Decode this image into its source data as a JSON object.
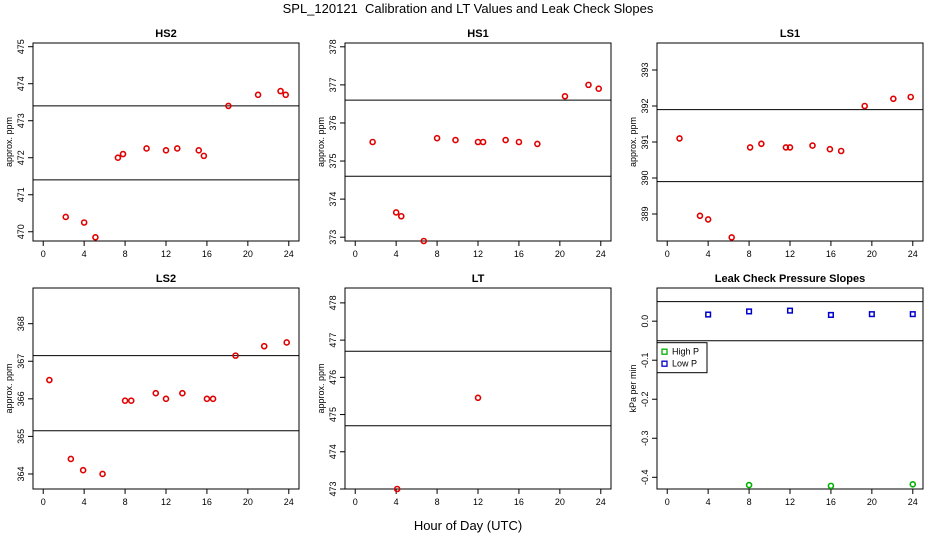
{
  "title": "SPL_120121  Calibration and LT Values and Leak Check Slopes",
  "x_axis_label": "Hour of Day (UTC)",
  "colors": {
    "point": "#e00000",
    "high_p": "#00b000",
    "low_p": "#0000cc",
    "axis": "#000000"
  },
  "chart_data": [
    {
      "type": "scatter",
      "title": "HS2",
      "ylabel": "approx. ppm",
      "xlim": [
        -1,
        25
      ],
      "ylim": [
        469.75,
        475.1
      ],
      "xticks": [
        0,
        4,
        8,
        12,
        16,
        20,
        24
      ],
      "yticks": [
        470,
        471,
        472,
        473,
        474,
        475
      ],
      "hlines": [
        471.4,
        473.4
      ],
      "series": [
        {
          "marker": "circle",
          "color": "#e00000",
          "x": [
            2.2,
            4.0,
            5.1,
            7.3,
            7.8,
            10.1,
            12.0,
            13.1,
            15.2,
            15.7,
            18.1,
            21.0,
            23.2,
            23.7
          ],
          "y": [
            470.4,
            470.25,
            469.85,
            472.0,
            472.1,
            472.25,
            472.2,
            472.25,
            472.2,
            472.05,
            473.4,
            473.7,
            473.8,
            473.7
          ]
        }
      ]
    },
    {
      "type": "scatter",
      "title": "HS1",
      "ylabel": "approx. ppm",
      "xlim": [
        -1,
        25
      ],
      "ylim": [
        372.9,
        378.1
      ],
      "xticks": [
        0,
        4,
        8,
        12,
        16,
        20,
        24
      ],
      "yticks": [
        373,
        374,
        375,
        376,
        377,
        378
      ],
      "hlines": [
        374.6,
        376.6
      ],
      "series": [
        {
          "marker": "circle",
          "color": "#e00000",
          "x": [
            1.7,
            4.0,
            4.5,
            6.7,
            8.0,
            9.8,
            12.0,
            12.5,
            14.7,
            16.0,
            17.8,
            20.5,
            22.8,
            23.8
          ],
          "y": [
            375.5,
            373.65,
            373.55,
            372.9,
            375.6,
            375.55,
            375.5,
            375.5,
            375.55,
            375.5,
            375.45,
            376.7,
            377.0,
            376.9
          ]
        }
      ]
    },
    {
      "type": "scatter",
      "title": "LS1",
      "ylabel": "approx. ppm",
      "xlim": [
        -1,
        25
      ],
      "ylim": [
        388.25,
        393.75
      ],
      "xticks": [
        0,
        4,
        8,
        12,
        16,
        20,
        24
      ],
      "yticks": [
        389,
        390,
        391,
        392,
        393
      ],
      "hlines": [
        389.9,
        391.9
      ],
      "series": [
        {
          "marker": "circle",
          "color": "#e00000",
          "x": [
            1.2,
            3.2,
            4.0,
            6.3,
            8.1,
            9.2,
            11.6,
            12.0,
            14.2,
            15.9,
            17.0,
            19.3,
            22.1,
            23.8
          ],
          "y": [
            391.1,
            388.95,
            388.85,
            388.35,
            390.85,
            390.95,
            390.85,
            390.85,
            390.9,
            390.8,
            390.75,
            392.0,
            392.2,
            392.25
          ]
        }
      ]
    },
    {
      "type": "scatter",
      "title": "LS2",
      "ylabel": "approx. ppm",
      "xlim": [
        -1,
        25
      ],
      "ylim": [
        363.6,
        368.95
      ],
      "xticks": [
        0,
        4,
        8,
        12,
        16,
        20,
        24
      ],
      "yticks": [
        364,
        365,
        366,
        367,
        368
      ],
      "hlines": [
        365.15,
        367.15
      ],
      "series": [
        {
          "marker": "circle",
          "color": "#e00000",
          "x": [
            0.6,
            2.7,
            3.9,
            5.8,
            8.0,
            8.6,
            11.0,
            12.0,
            13.6,
            16.0,
            16.6,
            18.8,
            21.6,
            23.8
          ],
          "y": [
            366.5,
            364.4,
            364.1,
            364.0,
            365.95,
            365.95,
            366.15,
            366.0,
            366.15,
            366.0,
            366.0,
            367.15,
            367.4,
            367.5
          ]
        }
      ]
    },
    {
      "type": "scatter",
      "title": "LT",
      "ylabel": "approx. ppm",
      "xlim": [
        -1,
        25
      ],
      "ylim": [
        473.0,
        478.4
      ],
      "xticks": [
        0,
        4,
        8,
        12,
        16,
        20,
        24
      ],
      "yticks": [
        473,
        474,
        475,
        476,
        477,
        478
      ],
      "hlines": [
        474.7,
        476.7
      ],
      "series": [
        {
          "marker": "circle",
          "color": "#e00000",
          "x": [
            4.1,
            12.0
          ],
          "y": [
            473.0,
            475.45
          ]
        }
      ]
    },
    {
      "type": "scatter",
      "title": "Leak Check Pressure Slopes",
      "ylabel": "kPa per min",
      "xlim": [
        -1,
        25
      ],
      "ylim": [
        -0.43,
        0.085
      ],
      "xticks": [
        0,
        4,
        8,
        12,
        16,
        20,
        24
      ],
      "yticks": [
        0.0,
        -0.1,
        -0.2,
        -0.3,
        -0.4
      ],
      "ytick_labels": [
        "0.0",
        "-0.1",
        "-0.2",
        "-0.3",
        "-0.4"
      ],
      "hlines": [
        0.05,
        -0.05
      ],
      "legend": {
        "position": "middle-left",
        "entries": [
          "High P",
          "Low P"
        ]
      },
      "series": [
        {
          "name": "High P",
          "marker": "circle",
          "color": "#00b000",
          "x": [
            8.0,
            16.0,
            24.0
          ],
          "y": [
            -0.42,
            -0.422,
            -0.418
          ]
        },
        {
          "name": "Low P",
          "marker": "square",
          "color": "#0000cc",
          "x": [
            4.0,
            8.0,
            12.0,
            16.0,
            20.0,
            24.0
          ],
          "y": [
            0.017,
            0.025,
            0.027,
            0.016,
            0.018,
            0.018
          ]
        }
      ]
    }
  ]
}
